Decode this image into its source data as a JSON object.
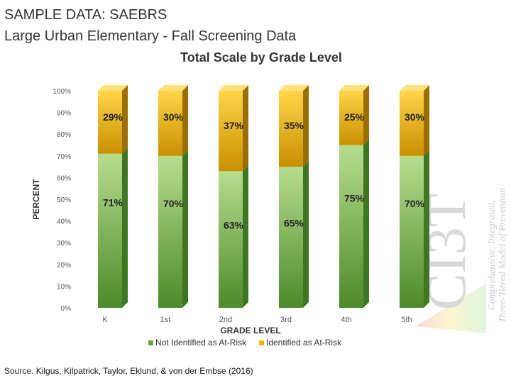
{
  "header": {
    "line1": "SAMPLE DATA: SAEBRS",
    "line2": "Large Urban Elementary - Fall Screening Data"
  },
  "source": {
    "prefix": "Source.",
    "authors": "Kilgus, Kilpatrick, Taylor, Eklund, & von der Embse (2016)"
  },
  "watermark": {
    "letters": "CI3T",
    "line1": "Comprehensive, Integrated,",
    "line2": "Three-Tiered Model of Prevention"
  },
  "colors": {
    "not_identified": "#6aa63a",
    "identified": "#f0b400"
  },
  "chart_data": {
    "type": "bar",
    "stacked": true,
    "title": "Total Scale by Grade Level",
    "xlabel": "GRADE LEVEL",
    "ylabel": "PERCENT",
    "categories": [
      "K",
      "1st",
      "2nd",
      "3rd",
      "4th",
      "5th"
    ],
    "series": [
      {
        "name": "Not Identified as At-Risk",
        "values": [
          71,
          70,
          63,
          65,
          75,
          70
        ],
        "labels": [
          "71%",
          "70%",
          "63%",
          "65%",
          "75%",
          "70%"
        ]
      },
      {
        "name": "Identified as At-Risk",
        "values": [
          29,
          30,
          37,
          35,
          25,
          30
        ],
        "labels": [
          "29%",
          "30%",
          "37%",
          "35%",
          "25%",
          "30%"
        ]
      }
    ],
    "ylim": [
      0,
      100
    ],
    "yticks": [
      "0%",
      "10%",
      "20%",
      "30%",
      "40%",
      "50%",
      "60%",
      "70%",
      "80%",
      "90%",
      "100%"
    ],
    "grid": false,
    "legend": "bottom"
  }
}
